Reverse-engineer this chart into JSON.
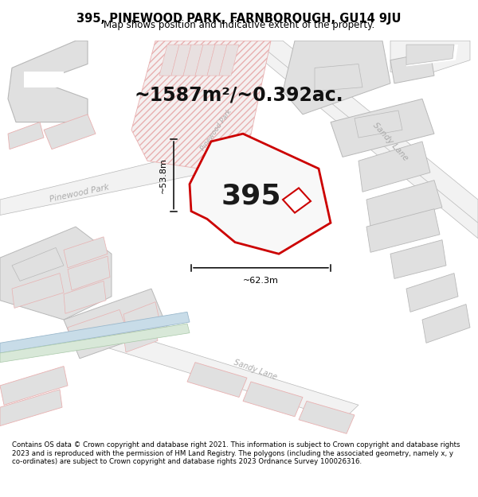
{
  "title": "395, PINEWOOD PARK, FARNBOROUGH, GU14 9JU",
  "subtitle": "Map shows position and indicative extent of the property.",
  "area_label": "~1587m²/~0.392ac.",
  "plot_number": "395",
  "dim_width": "~62.3m",
  "dim_height": "~53.8m",
  "footer": "Contains OS data © Crown copyright and database right 2021. This information is subject to Crown copyright and database rights 2023 and is reproduced with the permission of HM Land Registry. The polygons (including the associated geometry, namely x, y co-ordinates) are subject to Crown copyright and database rights 2023 Ordnance Survey 100026316.",
  "bg_color": "#ffffff",
  "map_bg": "#f8f8f8",
  "plot_fill": "#f0f0f0",
  "plot_edge": "#cc0000",
  "road_light": "#ebebeb",
  "road_dark": "#d8d8d8",
  "building_fill": "#e0e0e0",
  "building_edge_red": "#e8b0b0",
  "building_edge_gray": "#b8b8b8",
  "hatch_color": "#e8b0b0",
  "street_label_color": "#aaaaaa",
  "dim_color": "#000000",
  "title_fontsize": 10.5,
  "subtitle_fontsize": 8.5,
  "area_fontsize": 17,
  "plot_num_fontsize": 26,
  "footer_fontsize": 6.2
}
